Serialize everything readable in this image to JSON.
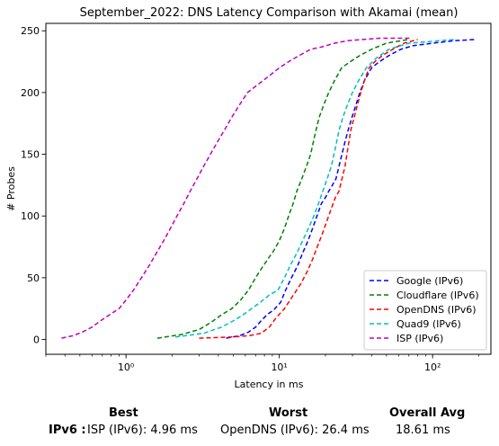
{
  "chart_data": {
    "type": "line",
    "title": "September_2022: DNS Latency Comparison with Akamai (mean)",
    "xlabel": "Latency in ms",
    "ylabel": "# Probes",
    "xscale": "log",
    "xlim": [
      0.3,
      240
    ],
    "ylim": [
      -12,
      256
    ],
    "xticks": [
      1,
      10,
      100
    ],
    "xtick_labels": [
      "10⁰",
      "10¹",
      "10²"
    ],
    "yticks": [
      0,
      50,
      100,
      150,
      200,
      250
    ],
    "ytick_labels": [
      "0",
      "50",
      "100",
      "150",
      "200",
      "250"
    ],
    "grid": false,
    "legend_position": "lower-right",
    "series": [
      {
        "name": "Google (IPv6)",
        "color": "#0000ff",
        "x": [
          4.5,
          5.5,
          6.3,
          7.0,
          7.6,
          8.3,
          9.2,
          10.2,
          11.0,
          12.0,
          13.2,
          14.2,
          15.4,
          16.5,
          17.6,
          18.8,
          20.0,
          21.0,
          22.2,
          23.4,
          24.5,
          25.6,
          26.8,
          28.2,
          29.8,
          31.6,
          33.5,
          36.0,
          40.0,
          45.0,
          52.0,
          62.0,
          75.0,
          100.0,
          140.0,
          190.0
        ],
        "y": [
          1,
          3,
          6,
          10,
          15,
          20,
          24,
          30,
          40,
          50,
          60,
          70,
          80,
          90,
          100,
          110,
          115,
          120,
          125,
          130,
          140,
          150,
          160,
          170,
          180,
          190,
          200,
          210,
          220,
          225,
          230,
          235,
          238,
          240,
          242,
          243
        ]
      },
      {
        "name": "Cloudflare (IPv6)",
        "color": "#008000",
        "x": [
          1.6,
          2.3,
          3.0,
          3.6,
          4.2,
          4.9,
          5.6,
          6.3,
          7.0,
          7.7,
          8.4,
          9.2,
          10.0,
          10.8,
          11.5,
          12.3,
          13.0,
          14.0,
          15.0,
          16.0,
          17.0,
          18.2,
          19.5,
          21.0,
          23.0,
          25.5,
          29.0,
          33.5,
          40.0,
          50.0,
          70.0
        ],
        "y": [
          1,
          4,
          8,
          14,
          20,
          25,
          32,
          40,
          50,
          58,
          65,
          72,
          80,
          90,
          100,
          110,
          120,
          130,
          140,
          150,
          165,
          180,
          190,
          200,
          210,
          220,
          225,
          230,
          235,
          240,
          243
        ]
      },
      {
        "name": "OpenDNS (IPv6)",
        "color": "#ff0000",
        "x": [
          3.0,
          4.8,
          6.3,
          7.6,
          8.6,
          9.6,
          10.8,
          12.2,
          13.8,
          15.2,
          16.5,
          17.7,
          19.0,
          20.3,
          21.7,
          23.2,
          24.5,
          25.6,
          26.8,
          28.0,
          29.3,
          30.8,
          32.3,
          34.0,
          36.0,
          38.5,
          42.0,
          47.0,
          55.0,
          65.0,
          80.0
        ],
        "y": [
          1,
          2,
          3,
          5,
          10,
          18,
          25,
          35,
          45,
          55,
          65,
          75,
          85,
          95,
          105,
          115,
          120,
          130,
          140,
          155,
          170,
          180,
          190,
          200,
          210,
          220,
          225,
          230,
          235,
          240,
          243
        ]
      },
      {
        "name": "Quad9 (IPv6)",
        "color": "#00bfbf",
        "x": [
          2.1,
          3.2,
          4.2,
          5.0,
          5.8,
          6.6,
          7.5,
          8.6,
          9.8,
          10.8,
          11.8,
          13.0,
          14.2,
          15.5,
          16.8,
          18.0,
          19.2,
          20.5,
          21.8,
          23.2,
          24.6,
          26.0,
          27.8,
          30.0,
          33.0,
          37.0,
          43.0,
          52.0,
          70.0,
          140.0
        ],
        "y": [
          2,
          5,
          10,
          15,
          20,
          25,
          30,
          36,
          40,
          50,
          60,
          70,
          80,
          90,
          100,
          110,
          120,
          130,
          140,
          155,
          170,
          180,
          190,
          200,
          210,
          220,
          228,
          235,
          240,
          243
        ]
      },
      {
        "name": "ISP (IPv6)",
        "color": "#bf00bf",
        "x": [
          0.38,
          0.45,
          0.52,
          0.6,
          0.68,
          0.78,
          0.9,
          1.0,
          1.12,
          1.26,
          1.42,
          1.58,
          1.76,
          1.95,
          2.15,
          2.38,
          2.62,
          2.9,
          3.2,
          3.55,
          3.95,
          4.4,
          4.9,
          5.5,
          6.2,
          7.0,
          7.9,
          8.9,
          10.0,
          11.5,
          13.5,
          16.0,
          19.0,
          23.0,
          28.0,
          35.0,
          45.0,
          58.0,
          72.0
        ],
        "y": [
          1,
          3,
          6,
          10,
          15,
          20,
          25,
          32,
          40,
          50,
          60,
          70,
          80,
          90,
          100,
          110,
          120,
          130,
          140,
          150,
          160,
          170,
          180,
          190,
          200,
          205,
          210,
          215,
          220,
          225,
          230,
          235,
          237,
          240,
          242,
          243,
          244,
          244,
          244
        ]
      }
    ]
  },
  "stats": {
    "best_label": "Best",
    "worst_label": "Worst",
    "avg_label": "Overall Avg",
    "row_label": "IPv6 :",
    "best_value": "ISP (IPv6): 4.96 ms",
    "worst_value": "OpenDNS (IPv6): 26.4 ms",
    "avg_value": "18.61 ms"
  }
}
